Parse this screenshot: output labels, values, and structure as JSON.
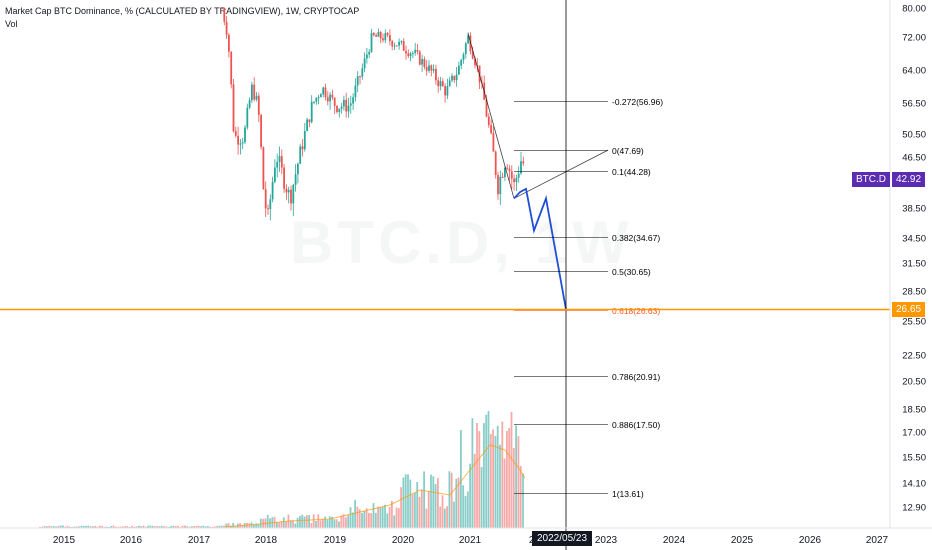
{
  "header": {
    "title": "Market Cap BTC Dominance, % (CALCULATED BY TRADINGVIEW), 1W, CRYPTOCAP",
    "sub": "Vol"
  },
  "watermark": "BTC.D, 1W",
  "colors": {
    "up": "#26a69a",
    "down": "#ef5350",
    "fib_line": "#000000",
    "target_fib": "#ff5722",
    "horizontal_line": "#ff9800",
    "projection": "#1e4fd6",
    "btcd_tag": "#5b2bb2",
    "axis_text": "#131722"
  },
  "chart_data": {
    "type": "candlestick",
    "y_axis_ticks": [
      "80.00",
      "72.00",
      "64.00",
      "56.50",
      "50.50",
      "46.50",
      "38.50",
      "34.50",
      "31.50",
      "28.50",
      "25.50",
      "22.50",
      "20.50",
      "18.50",
      "17.00",
      "15.50",
      "14.10",
      "12.90"
    ],
    "x_axis_ticks": [
      "2015",
      "2016",
      "2017",
      "2018",
      "2019",
      "2020",
      "2021",
      "2022",
      "2023",
      "2024",
      "2025",
      "2026",
      "2027"
    ],
    "fib_levels": [
      {
        "label": "-0.272(56.96)",
        "value": 56.96
      },
      {
        "label": "0(47.69)",
        "value": 47.69
      },
      {
        "label": "0.1(44.28)",
        "value": 44.28
      },
      {
        "label": "0.382(34.67)",
        "value": 34.67
      },
      {
        "label": "0.5(30.65)",
        "value": 30.65
      },
      {
        "label": "0.618(26.63)",
        "value": 26.63,
        "highlight": true
      },
      {
        "label": "0.786(20.91)",
        "value": 20.91
      },
      {
        "label": "0.886(17.50)",
        "value": 17.5
      },
      {
        "label": "1(13.61)",
        "value": 13.61
      }
    ],
    "horizontal_line": 26.65,
    "cursor_date": "2022/05/23",
    "price_tags": [
      {
        "symbol": "BTC.D",
        "value": "42.92"
      },
      {
        "symbol": "",
        "value": "26.65"
      }
    ]
  }
}
